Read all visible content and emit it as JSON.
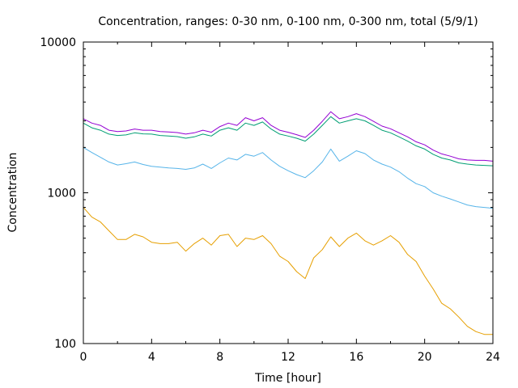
{
  "chart_data": {
    "type": "line",
    "title": "Concentration, ranges: 0-30 nm, 0-100 nm, 0-300 nm, total (5/9/1)",
    "xlabel": "Time [hour]",
    "ylabel": "Concentration",
    "xlim": [
      0,
      24
    ],
    "ylim": [
      100,
      10000
    ],
    "yscale": "log",
    "grid": false,
    "legend": "none",
    "x_ticks": [
      0,
      4,
      8,
      12,
      16,
      20,
      24
    ],
    "x_tick_labels": [
      "0",
      "4",
      "8",
      "12",
      "16",
      "20",
      "24"
    ],
    "y_ticks": [
      100,
      1000,
      10000
    ],
    "y_tick_labels": [
      "100",
      "1000",
      "10000"
    ],
    "x": [
      0,
      0.5,
      1,
      1.5,
      2,
      2.5,
      3,
      3.5,
      4,
      4.5,
      5,
      5.5,
      6,
      6.5,
      7,
      7.5,
      8,
      8.5,
      9,
      9.5,
      10,
      10.5,
      11,
      11.5,
      12,
      12.5,
      13,
      13.5,
      14,
      14.5,
      15,
      15.5,
      16,
      16.5,
      17,
      17.5,
      18,
      18.5,
      19,
      19.5,
      20,
      20.5,
      21,
      21.5,
      22,
      22.5,
      23,
      23.5,
      24
    ],
    "series": [
      {
        "color": "#e69f00",
        "values": [
          800,
          690,
          640,
          560,
          490,
          490,
          530,
          510,
          470,
          460,
          460,
          470,
          410,
          460,
          500,
          450,
          520,
          530,
          440,
          500,
          490,
          520,
          460,
          380,
          350,
          300,
          270,
          370,
          420,
          510,
          440,
          500,
          540,
          480,
          450,
          480,
          520,
          470,
          390,
          350,
          280,
          230,
          185,
          170,
          150,
          130,
          120,
          115,
          115
        ]
      },
      {
        "color": "#56b4e9",
        "values": [
          2000,
          1850,
          1720,
          1600,
          1530,
          1560,
          1600,
          1540,
          1500,
          1480,
          1460,
          1450,
          1430,
          1460,
          1550,
          1450,
          1580,
          1700,
          1650,
          1800,
          1750,
          1850,
          1650,
          1500,
          1400,
          1320,
          1260,
          1400,
          1600,
          1950,
          1620,
          1750,
          1900,
          1820,
          1650,
          1550,
          1480,
          1380,
          1250,
          1150,
          1100,
          1000,
          950,
          910,
          870,
          830,
          810,
          800,
          790
        ]
      },
      {
        "color": "#009e73",
        "values": [
          2900,
          2700,
          2600,
          2450,
          2400,
          2420,
          2500,
          2460,
          2450,
          2400,
          2380,
          2360,
          2300,
          2350,
          2450,
          2380,
          2600,
          2700,
          2600,
          2900,
          2800,
          2950,
          2650,
          2450,
          2380,
          2300,
          2200,
          2450,
          2800,
          3200,
          2900,
          3000,
          3100,
          3000,
          2800,
          2600,
          2500,
          2350,
          2200,
          2050,
          1950,
          1800,
          1700,
          1650,
          1580,
          1550,
          1530,
          1520,
          1510
        ]
      },
      {
        "color": "#9400d3",
        "values": [
          3100,
          2900,
          2800,
          2600,
          2550,
          2570,
          2650,
          2600,
          2600,
          2550,
          2530,
          2510,
          2450,
          2500,
          2600,
          2520,
          2750,
          2900,
          2800,
          3150,
          3000,
          3150,
          2800,
          2600,
          2520,
          2430,
          2330,
          2600,
          2980,
          3450,
          3100,
          3200,
          3350,
          3200,
          2980,
          2770,
          2660,
          2500,
          2350,
          2180,
          2080,
          1920,
          1810,
          1750,
          1680,
          1650,
          1640,
          1640,
          1620
        ]
      }
    ]
  }
}
